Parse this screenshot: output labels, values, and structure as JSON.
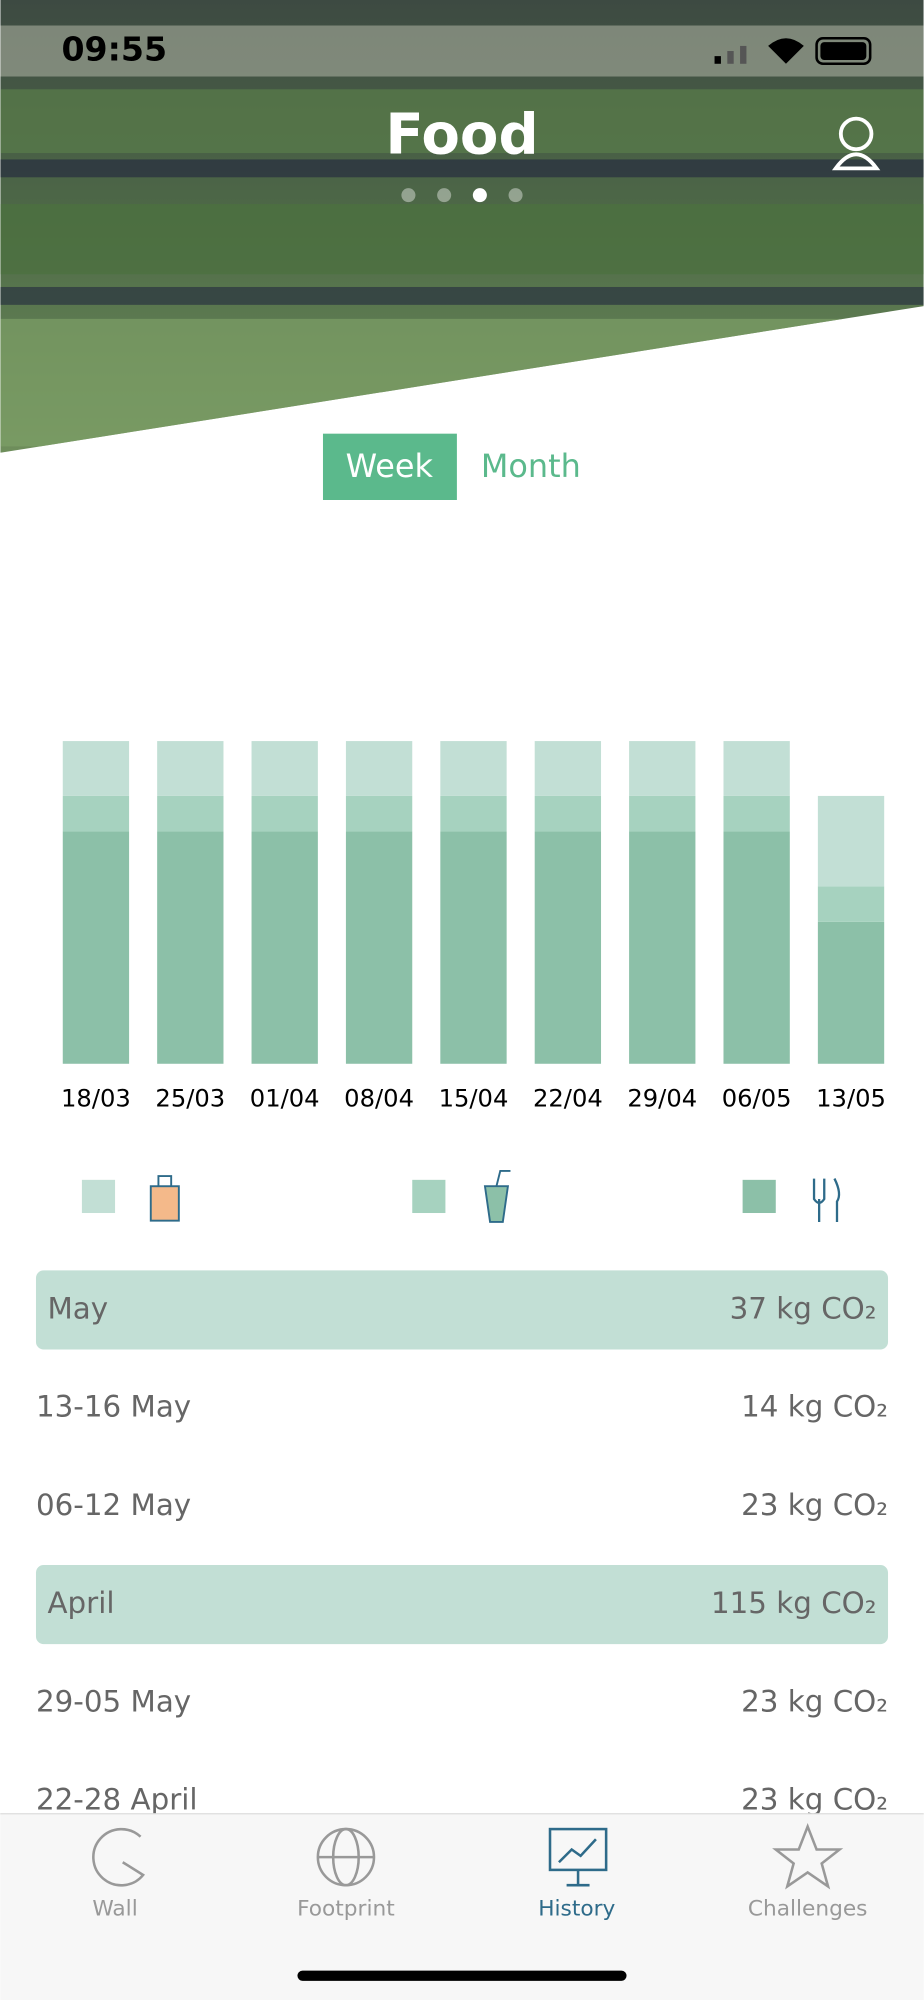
{
  "status_bar": {
    "time": "09:55"
  },
  "header": {
    "title": "Food",
    "page_count": 4,
    "page_active": 2
  },
  "tabs": [
    {
      "label": "Week",
      "selected": true
    },
    {
      "label": "Month",
      "selected": false
    }
  ],
  "chart_data": {
    "type": "bar",
    "stacked": true,
    "categories": [
      "18/03",
      "25/03",
      "01/04",
      "08/04",
      "15/04",
      "22/04",
      "29/04",
      "06/05",
      "13/05"
    ],
    "series": [
      {
        "color": "#8cc0a8",
        "values": [
          7.2,
          7.2,
          7.2,
          7.2,
          7.2,
          7.2,
          7.2,
          7.2,
          4.4
        ]
      },
      {
        "color": "#a6d2bf",
        "values": [
          1.1,
          1.1,
          1.1,
          1.1,
          1.1,
          1.1,
          1.1,
          1.1,
          1.1
        ]
      },
      {
        "color": "#c2dfd5",
        "values": [
          1.7,
          1.7,
          1.7,
          1.7,
          1.7,
          1.7,
          1.7,
          1.7,
          2.8
        ]
      }
    ],
    "ylim": [
      0,
      10
    ]
  },
  "history": [
    {
      "label": "May",
      "value": "37 kg CO₂",
      "month": true
    },
    {
      "label": "13-16 May",
      "value": "14 kg CO₂",
      "month": false
    },
    {
      "label": "06-12 May",
      "value": "23 kg CO₂",
      "month": false
    },
    {
      "label": "April",
      "value": "115 kg CO₂",
      "month": true
    },
    {
      "label": "29-05 May",
      "value": "23 kg CO₂",
      "month": false
    },
    {
      "label": "22-28 April",
      "value": "23 kg CO₂",
      "month": false
    }
  ],
  "tab_bar": [
    {
      "label": "Wall",
      "selected": false
    },
    {
      "label": "Footprint",
      "selected": false
    },
    {
      "label": "History",
      "selected": true
    },
    {
      "label": "Challenges",
      "selected": false
    }
  ]
}
